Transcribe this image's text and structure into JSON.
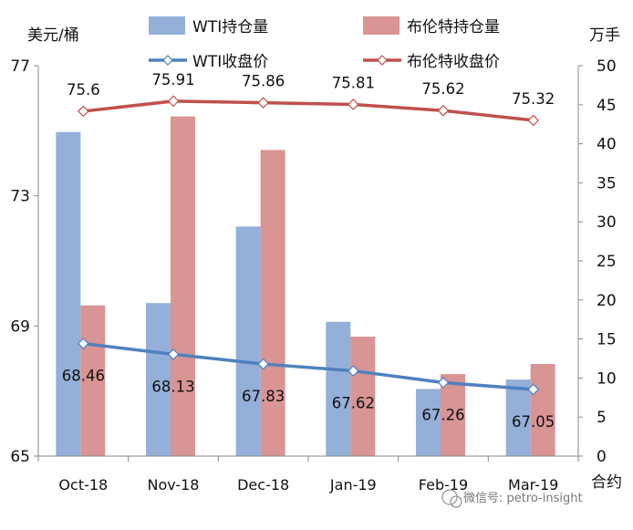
{
  "chart_data": {
    "type": "bar",
    "categories": [
      "Oct-18",
      "Nov-18",
      "Dec-18",
      "Jan-19",
      "Feb-19",
      "Mar-19"
    ],
    "left_unit": "美元/桶",
    "right_unit": "万手",
    "right_axis_label": "合约",
    "left_axis": {
      "min": 65,
      "max": 77,
      "ticks": [
        65,
        69,
        73,
        77
      ]
    },
    "right_axis": {
      "min": 0,
      "max": 50,
      "step": 5
    },
    "bar_series": [
      {
        "name": "WTI持仓量",
        "color": "#94B0D9",
        "axis": "right",
        "values": [
          41.5,
          19.6,
          29.4,
          17.2,
          8.6,
          9.8
        ]
      },
      {
        "name": "布伦特持仓量",
        "color": "#D99494",
        "axis": "right",
        "values": [
          19.3,
          43.5,
          39.2,
          15.3,
          10.5,
          11.8
        ]
      }
    ],
    "line_series": [
      {
        "name": "WTI收盘价",
        "color": "#4F81BD",
        "axis": "left",
        "values": [
          68.46,
          68.13,
          67.83,
          67.62,
          67.26,
          67.05
        ]
      },
      {
        "name": "布伦特收盘价",
        "color": "#C0504D",
        "axis": "left",
        "values": [
          75.6,
          75.91,
          75.86,
          75.81,
          75.62,
          75.32
        ]
      }
    ],
    "legend_placement": "top",
    "grid": false
  },
  "watermark": "微信号: petro-insight"
}
